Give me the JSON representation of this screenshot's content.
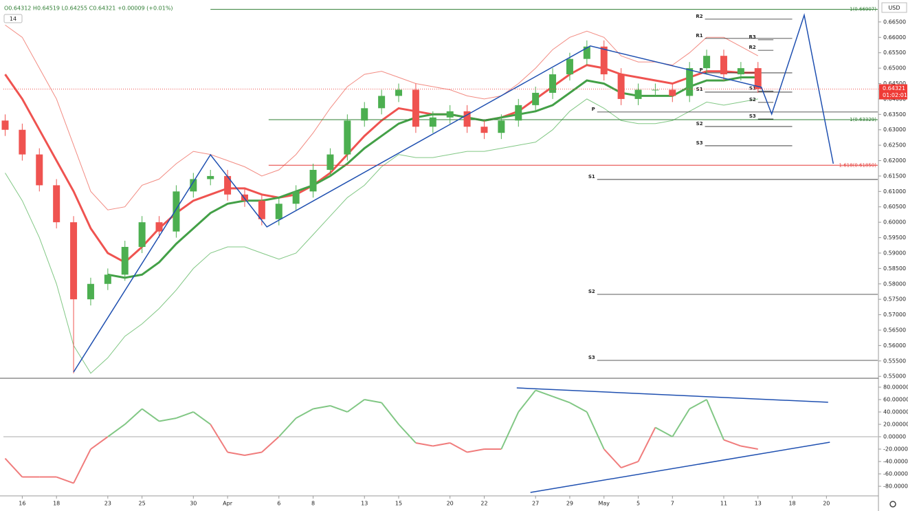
{
  "chart_data": [
    {
      "type": "candlestick",
      "title": "O0.64312 H0.64519 L0.64255 C0.64321 +0.00009 (+0.01%)",
      "indicator_label": "14",
      "currency": "USD",
      "last_price": 0.64321,
      "countdown": "01:02:01",
      "up_color": "#4caf50",
      "down_color": "#ef5350",
      "xlim": [
        -0.1,
        51
      ],
      "ylim": [
        0.5496,
        0.671
      ],
      "yticks": [
        {
          "value": 0.665,
          "label": "0.66500"
        },
        {
          "value": 0.66,
          "label": "0.66000"
        },
        {
          "value": 0.655,
          "label": "0.65500"
        },
        {
          "value": 0.65,
          "label": "0.65000"
        },
        {
          "value": 0.645,
          "label": "0.64500"
        },
        {
          "value": 0.64,
          "label": "0.64000"
        },
        {
          "value": 0.635,
          "label": "0.63500"
        },
        {
          "value": 0.63,
          "label": "0.63000"
        },
        {
          "value": 0.625,
          "label": "0.62500"
        },
        {
          "value": 0.62,
          "label": "0.62000"
        },
        {
          "value": 0.615,
          "label": "0.61500"
        },
        {
          "value": 0.61,
          "label": "0.61000"
        },
        {
          "value": 0.605,
          "label": "0.60500"
        },
        {
          "value": 0.6,
          "label": "0.60000"
        },
        {
          "value": 0.595,
          "label": "0.59500"
        },
        {
          "value": 0.59,
          "label": "0.59000"
        },
        {
          "value": 0.585,
          "label": "0.58500"
        },
        {
          "value": 0.58,
          "label": "0.58000"
        },
        {
          "value": 0.575,
          "label": "0.57500"
        },
        {
          "value": 0.57,
          "label": "0.57000"
        },
        {
          "value": 0.565,
          "label": "0.56500"
        },
        {
          "value": 0.56,
          "label": "0.56000"
        },
        {
          "value": 0.555,
          "label": "0.55500"
        },
        {
          "value": 0.55,
          "label": "0.55000"
        }
      ],
      "x": [
        0,
        1,
        2,
        3,
        4,
        5,
        6,
        7,
        8,
        9,
        10,
        11,
        12,
        13,
        14,
        15,
        16,
        17,
        18,
        19,
        20,
        21,
        22,
        23,
        24,
        25,
        26,
        27,
        28,
        29,
        30,
        31,
        32,
        33,
        34,
        35,
        36,
        37,
        38,
        39,
        40,
        41,
        42,
        43,
        44
      ],
      "open": [
        0.633,
        0.63,
        0.622,
        0.612,
        0.6,
        0.575,
        0.58,
        0.583,
        0.592,
        0.6,
        0.597,
        0.61,
        0.614,
        0.615,
        0.609,
        0.607,
        0.601,
        0.606,
        0.61,
        0.617,
        0.622,
        0.633,
        0.637,
        0.641,
        0.643,
        0.631,
        0.634,
        0.636,
        0.631,
        0.629,
        0.633,
        0.638,
        0.642,
        0.648,
        0.653,
        0.657,
        0.648,
        0.64,
        0.643,
        0.643,
        0.641,
        0.65,
        0.654,
        0.648,
        0.65
      ],
      "high": [
        0.635,
        0.632,
        0.624,
        0.614,
        0.602,
        0.582,
        0.585,
        0.594,
        0.602,
        0.602,
        0.612,
        0.616,
        0.617,
        0.617,
        0.611,
        0.609,
        0.608,
        0.612,
        0.619,
        0.624,
        0.635,
        0.639,
        0.643,
        0.645,
        0.645,
        0.636,
        0.638,
        0.638,
        0.633,
        0.635,
        0.64,
        0.644,
        0.65,
        0.655,
        0.659,
        0.659,
        0.65,
        0.645,
        0.645,
        0.645,
        0.652,
        0.656,
        0.656,
        0.652,
        0.652
      ],
      "low": [
        0.628,
        0.62,
        0.61,
        0.598,
        0.551,
        0.573,
        0.578,
        0.581,
        0.59,
        0.595,
        0.595,
        0.608,
        0.612,
        0.607,
        0.605,
        0.599,
        0.599,
        0.604,
        0.608,
        0.615,
        0.62,
        0.631,
        0.635,
        0.639,
        0.629,
        0.629,
        0.632,
        0.629,
        0.627,
        0.627,
        0.631,
        0.636,
        0.64,
        0.646,
        0.651,
        0.646,
        0.638,
        0.638,
        0.641,
        0.639,
        0.639,
        0.648,
        0.646,
        0.646,
        0.642
      ],
      "close": [
        0.63,
        0.622,
        0.612,
        0.6,
        0.575,
        0.58,
        0.583,
        0.592,
        0.6,
        0.597,
        0.61,
        0.614,
        0.615,
        0.609,
        0.607,
        0.601,
        0.606,
        0.61,
        0.617,
        0.622,
        0.633,
        0.637,
        0.641,
        0.643,
        0.631,
        0.634,
        0.636,
        0.631,
        0.629,
        0.633,
        0.638,
        0.642,
        0.648,
        0.653,
        0.657,
        0.648,
        0.64,
        0.643,
        0.643,
        0.641,
        0.65,
        0.654,
        0.648,
        0.65,
        0.64321
      ],
      "series": [
        {
          "color": "#f28b82",
          "width": 1,
          "values": [
            0.664,
            0.66,
            0.65,
            0.64,
            0.625,
            0.61,
            0.604,
            0.605,
            0.612,
            0.614,
            0.619,
            0.623,
            0.622,
            0.62,
            0.618,
            0.615,
            0.617,
            0.622,
            0.629,
            0.637,
            0.644,
            0.648,
            0.649,
            0.647,
            0.645,
            0.644,
            0.643,
            0.641,
            0.64,
            0.641,
            0.645,
            0.65,
            0.656,
            0.66,
            0.662,
            0.66,
            0.654,
            0.652,
            0.652,
            0.651,
            0.655,
            0.66,
            0.66,
            0.657,
            0.654
          ]
        },
        {
          "color": "#81c784",
          "width": 1,
          "values": [
            0.616,
            0.607,
            0.595,
            0.58,
            0.56,
            0.551,
            0.556,
            0.563,
            0.567,
            0.572,
            0.578,
            0.585,
            0.59,
            0.592,
            0.592,
            0.59,
            0.588,
            0.59,
            0.596,
            0.602,
            0.608,
            0.612,
            0.618,
            0.622,
            0.621,
            0.621,
            0.622,
            0.623,
            0.623,
            0.624,
            0.625,
            0.626,
            0.63,
            0.636,
            0.64,
            0.637,
            0.633,
            0.632,
            0.632,
            0.633,
            0.636,
            0.639,
            0.638,
            0.639,
            0.64
          ]
        },
        {
          "color": "#ef5350",
          "width": 3,
          "values": [
            0.648,
            0.64,
            0.63,
            0.62,
            0.61,
            0.598,
            0.59,
            0.587,
            0.592,
            0.598,
            0.603,
            0.607,
            0.609,
            0.611,
            0.611,
            0.609,
            0.608,
            0.609,
            0.612,
            0.616,
            0.622,
            0.628,
            0.633,
            0.637,
            0.636,
            0.635,
            0.635,
            0.634,
            0.633,
            0.634,
            0.636,
            0.64,
            0.644,
            0.648,
            0.651,
            0.65,
            0.648,
            0.647,
            0.646,
            0.645,
            0.647,
            0.649,
            0.649,
            0.6485,
            0.6485
          ]
        },
        {
          "color": "#43a047",
          "width": 3,
          "values": [
            null,
            null,
            null,
            null,
            null,
            null,
            0.583,
            0.582,
            0.583,
            0.587,
            0.593,
            0.598,
            0.603,
            0.606,
            0.607,
            0.607,
            0.608,
            0.61,
            0.612,
            0.615,
            0.619,
            0.624,
            0.628,
            0.632,
            0.634,
            0.635,
            0.635,
            0.634,
            0.633,
            0.634,
            0.635,
            0.636,
            0.638,
            0.642,
            0.646,
            0.645,
            0.642,
            0.641,
            0.641,
            0.641,
            0.644,
            0.646,
            0.646,
            0.647,
            0.647
          ]
        }
      ],
      "zigzag": {
        "color": "#1e4fb0",
        "x": [
          4.0,
          12.0,
          15.3,
          34.2,
          44.2,
          44.8,
          46.7,
          48.4
        ],
        "values": [
          0.5514,
          0.6219,
          0.5985,
          0.6572,
          0.6438,
          0.6351,
          0.6672,
          0.619
        ]
      },
      "levels": [
        {
          "label": "1(0.66907)",
          "value": 0.66907,
          "from": 12,
          "color": "#2e7d32"
        },
        {
          "label": "1(0.63329)",
          "value": 0.63329,
          "from": 15.4,
          "color": "#2e7d32"
        },
        {
          "label": "1.618(0.61850)",
          "value": 0.6185,
          "from": 15.4,
          "color": "#e53935"
        }
      ],
      "pivots": [
        {
          "from": 40.9,
          "to": 46.0,
          "lines": [
            {
              "label": "R2",
              "value": 0.66589
            },
            {
              "label": "R1",
              "value": 0.65964
            },
            {
              "label": "P",
              "value": 0.64848
            },
            {
              "label": "S1",
              "value": 0.64223
            },
            {
              "label": "S2",
              "value": 0.63107
            },
            {
              "label": "S3",
              "value": 0.62482
            }
          ]
        },
        {
          "from": 34.6,
          "to": 51,
          "lines": [
            {
              "label": "P",
              "value": 0.63576
            },
            {
              "label": "S1",
              "value": 0.61388
            },
            {
              "label": "S2",
              "value": 0.57661
            },
            {
              "label": "S3",
              "value": 0.55518
            }
          ]
        },
        {
          "from": 44.0,
          "to": 44.9,
          "lines": [
            {
              "label": "R3",
              "value": 0.6592
            },
            {
              "label": "R2",
              "value": 0.6558
            },
            {
              "label": "S1",
              "value": 0.6425
            },
            {
              "label": "S2",
              "value": 0.6389
            },
            {
              "label": "S3",
              "value": 0.6335
            }
          ]
        }
      ]
    },
    {
      "type": "oscillator",
      "above_color": "#81c784",
      "below_color": "#f07c7c",
      "xlim": [
        -0.1,
        51
      ],
      "ylim": [
        -94.4,
        93.3
      ],
      "yticks": [
        {
          "value": 80,
          "label": "80.00000"
        },
        {
          "value": 60,
          "label": "60.00000"
        },
        {
          "value": 40,
          "label": "40.00000"
        },
        {
          "value": 20,
          "label": "20.00000"
        },
        {
          "value": 0,
          "label": "0.00000"
        },
        {
          "value": -20,
          "label": "-20.00000"
        },
        {
          "value": -40,
          "label": "-40.00000"
        },
        {
          "value": -60,
          "label": "-60.00000"
        },
        {
          "value": -80,
          "label": "-80.00000"
        }
      ],
      "xticks": [
        {
          "value": 1,
          "label": "16"
        },
        {
          "value": 3,
          "label": "18"
        },
        {
          "value": 6,
          "label": "23"
        },
        {
          "value": 8,
          "label": "25"
        },
        {
          "value": 11,
          "label": "30"
        },
        {
          "value": 13,
          "label": "Apr"
        },
        {
          "value": 16,
          "label": "6"
        },
        {
          "value": 18,
          "label": "8"
        },
        {
          "value": 21,
          "label": "13"
        },
        {
          "value": 23,
          "label": "15"
        },
        {
          "value": 26,
          "label": "20"
        },
        {
          "value": 28,
          "label": "22"
        },
        {
          "value": 31,
          "label": "27"
        },
        {
          "value": 33,
          "label": "29"
        },
        {
          "value": 35,
          "label": "May"
        },
        {
          "value": 37,
          "label": "5"
        },
        {
          "value": 39,
          "label": "7"
        },
        {
          "value": 42,
          "label": "11"
        },
        {
          "value": 44,
          "label": "13"
        },
        {
          "value": 46,
          "label": "18"
        },
        {
          "value": 48,
          "label": "20"
        }
      ],
      "x": [
        0,
        1,
        2,
        3,
        4,
        5,
        6,
        7,
        8,
        9,
        10,
        11,
        12,
        13,
        14,
        15,
        16,
        17,
        18,
        19,
        20,
        21,
        22,
        23,
        24,
        25,
        26,
        27,
        28,
        29,
        30,
        31,
        32,
        33,
        34,
        35,
        36,
        37,
        38,
        39,
        40,
        41,
        42,
        43,
        44
      ],
      "values": [
        -35,
        -65,
        -65,
        -65,
        -75,
        -20,
        0,
        20,
        45,
        25,
        30,
        40,
        20,
        -25,
        -30,
        -25,
        0,
        30,
        45,
        50,
        40,
        60,
        55,
        20,
        -10,
        -15,
        -10,
        -25,
        -20,
        -20,
        40,
        75,
        65,
        55,
        40,
        -20,
        -50,
        -40,
        15,
        0,
        45,
        60,
        -5,
        -15,
        -20
      ],
      "trendlines": [
        {
          "color": "#1e4fb0",
          "x": [
            29.9,
            48.1
          ],
          "values": [
            78.9,
            55.6
          ]
        },
        {
          "color": "#1e4fb0",
          "x": [
            30.7,
            48.2
          ],
          "values": [
            -90,
            -8.9
          ]
        }
      ]
    }
  ]
}
